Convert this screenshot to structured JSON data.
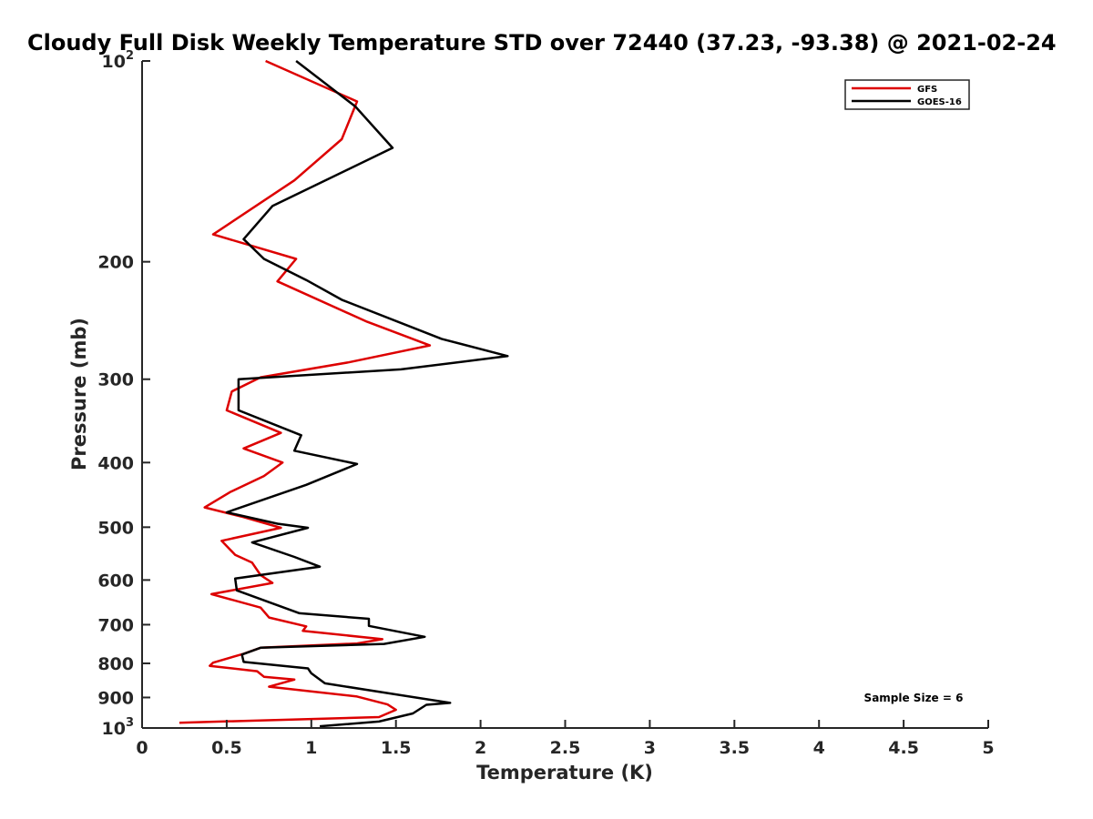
{
  "chart_data": {
    "type": "line",
    "title": "Cloudy Full Disk Weekly Temperature STD over 72440 (37.23, -93.38) @ 2021-02-24",
    "xlabel": "Temperature (K)",
    "ylabel": "Pressure (mb)",
    "xlim": [
      0,
      5
    ],
    "ylim": [
      1000,
      100
    ],
    "yscale": "log",
    "y_reversed": true,
    "grid": false,
    "legend_position": "top-right",
    "x_ticks": [
      {
        "value": 0,
        "label": "0"
      },
      {
        "value": 0.5,
        "label": "0.5"
      },
      {
        "value": 1,
        "label": "1"
      },
      {
        "value": 1.5,
        "label": "1.5"
      },
      {
        "value": 2,
        "label": "2"
      },
      {
        "value": 2.5,
        "label": "2.5"
      },
      {
        "value": 3,
        "label": "3"
      },
      {
        "value": 3.5,
        "label": "3.5"
      },
      {
        "value": 4,
        "label": "4"
      },
      {
        "value": 4.5,
        "label": "4.5"
      },
      {
        "value": 5,
        "label": "5"
      }
    ],
    "y_ticks": [
      {
        "value": 100,
        "base": "10",
        "exp": "2"
      },
      {
        "value": 200,
        "base": "200",
        "exp": ""
      },
      {
        "value": 300,
        "base": "300",
        "exp": ""
      },
      {
        "value": 400,
        "base": "400",
        "exp": ""
      },
      {
        "value": 500,
        "base": "500",
        "exp": ""
      },
      {
        "value": 600,
        "base": "600",
        "exp": ""
      },
      {
        "value": 700,
        "base": "700",
        "exp": ""
      },
      {
        "value": 800,
        "base": "800",
        "exp": ""
      },
      {
        "value": 900,
        "base": "900",
        "exp": ""
      },
      {
        "value": 1000,
        "base": "10",
        "exp": "3"
      }
    ],
    "series": [
      {
        "name": "GFS",
        "color": "#dd0000",
        "points": [
          [
            0.73,
            100
          ],
          [
            1.27,
            115
          ],
          [
            1.18,
            131
          ],
          [
            0.9,
            151
          ],
          [
            0.42,
            182
          ],
          [
            0.91,
            198
          ],
          [
            0.8,
            214
          ],
          [
            1.33,
            246
          ],
          [
            1.7,
            267
          ],
          [
            1.22,
            283
          ],
          [
            0.7,
            298
          ],
          [
            0.53,
            313
          ],
          [
            0.5,
            334
          ],
          [
            0.82,
            361
          ],
          [
            0.6,
            381
          ],
          [
            0.83,
            400
          ],
          [
            0.72,
            419
          ],
          [
            0.52,
            443
          ],
          [
            0.37,
            467
          ],
          [
            0.6,
            483
          ],
          [
            0.82,
            501
          ],
          [
            0.47,
            524
          ],
          [
            0.55,
            550
          ],
          [
            0.65,
            565
          ],
          [
            0.7,
            590
          ],
          [
            0.77,
            606
          ],
          [
            0.41,
            630
          ],
          [
            0.7,
            660
          ],
          [
            0.75,
            683
          ],
          [
            0.97,
            704
          ],
          [
            0.95,
            715
          ],
          [
            1.42,
            736
          ],
          [
            1.27,
            747
          ],
          [
            0.7,
            758
          ],
          [
            0.6,
            774
          ],
          [
            0.42,
            798
          ],
          [
            0.4,
            807
          ],
          [
            0.68,
            822
          ],
          [
            0.72,
            838
          ],
          [
            0.9,
            846
          ],
          [
            0.75,
            867
          ],
          [
            1.27,
            897
          ],
          [
            1.45,
            922
          ],
          [
            1.5,
            939
          ],
          [
            1.4,
            963
          ],
          [
            0.22,
            982
          ]
        ]
      },
      {
        "name": "GOES-16",
        "color": "#000000",
        "points": [
          [
            0.91,
            100
          ],
          [
            1.26,
            117
          ],
          [
            1.48,
            135
          ],
          [
            0.77,
            165
          ],
          [
            0.6,
            185
          ],
          [
            0.72,
            198
          ],
          [
            0.97,
            213
          ],
          [
            1.18,
            228
          ],
          [
            1.77,
            261
          ],
          [
            2.16,
            277
          ],
          [
            1.53,
            290
          ],
          [
            0.57,
            300
          ],
          [
            0.57,
            334
          ],
          [
            0.94,
            364
          ],
          [
            0.9,
            384
          ],
          [
            1.27,
            402
          ],
          [
            0.97,
            432
          ],
          [
            0.5,
            475
          ],
          [
            0.8,
            494
          ],
          [
            0.98,
            501
          ],
          [
            0.65,
            527
          ],
          [
            0.9,
            554
          ],
          [
            1.05,
            573
          ],
          [
            0.55,
            597
          ],
          [
            0.56,
            622
          ],
          [
            0.93,
            673
          ],
          [
            1.34,
            686
          ],
          [
            1.34,
            703
          ],
          [
            1.67,
            730
          ],
          [
            1.43,
            748
          ],
          [
            0.7,
            758
          ],
          [
            0.59,
            776
          ],
          [
            0.6,
            796
          ],
          [
            0.98,
            814
          ],
          [
            1.0,
            828
          ],
          [
            1.08,
            857
          ],
          [
            1.82,
            917
          ],
          [
            1.68,
            923
          ],
          [
            1.6,
            951
          ],
          [
            1.4,
            978
          ],
          [
            1.05,
            994
          ]
        ]
      }
    ],
    "annotations": [
      "Sample Size = 6"
    ]
  }
}
